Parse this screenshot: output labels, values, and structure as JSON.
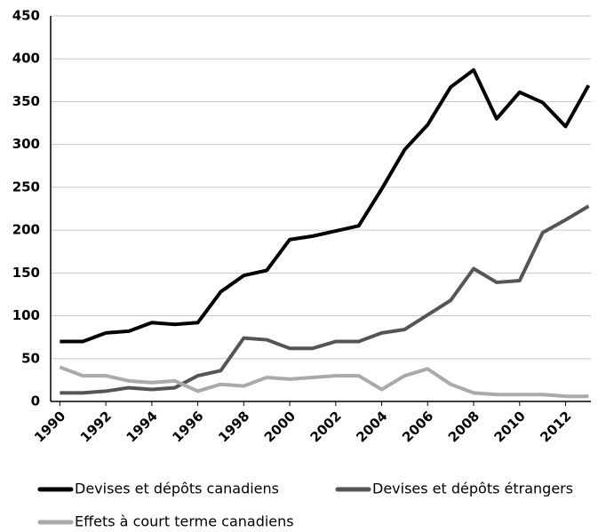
{
  "chart_data": {
    "type": "line",
    "x": [
      1990,
      1991,
      1992,
      1993,
      1994,
      1995,
      1996,
      1997,
      1998,
      1999,
      2000,
      2001,
      2002,
      2003,
      2004,
      2005,
      2006,
      2007,
      2008,
      2009,
      2010,
      2011,
      2012,
      2013
    ],
    "series": [
      {
        "name": "Devises et dépôts canadiens",
        "color": "#000000",
        "values": [
          70,
          70,
          80,
          82,
          92,
          90,
          92,
          128,
          147,
          153,
          189,
          193,
          199,
          205,
          248,
          294,
          323,
          367,
          387,
          330,
          361,
          349,
          321,
          369
        ]
      },
      {
        "name": "Devises et dépôts étrangers",
        "color": "#555555",
        "values": [
          10,
          10,
          12,
          16,
          14,
          16,
          30,
          36,
          74,
          72,
          62,
          62,
          70,
          70,
          80,
          84,
          101,
          118,
          155,
          139,
          141,
          197,
          212,
          228
        ]
      },
      {
        "name": "Effets à court terme canadiens",
        "color": "#aaaaaa",
        "values": [
          40,
          30,
          30,
          24,
          22,
          24,
          12,
          20,
          18,
          28,
          26,
          28,
          30,
          30,
          14,
          30,
          38,
          20,
          10,
          8,
          8,
          8,
          6,
          6
        ]
      }
    ],
    "xlim": [
      1989.6,
      2013.1
    ],
    "xticks": [
      1990,
      1992,
      1994,
      1996,
      1998,
      2000,
      2002,
      2004,
      2006,
      2008,
      2010,
      2012
    ],
    "ylim": [
      0,
      450
    ],
    "yticks": [
      0,
      50,
      100,
      150,
      200,
      250,
      300,
      350,
      400,
      450
    ],
    "grid": true,
    "legend": "bottom"
  }
}
